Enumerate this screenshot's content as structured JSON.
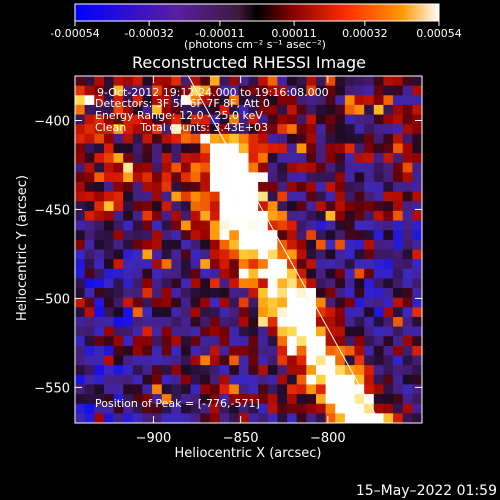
{
  "colorbar": {
    "tick_labels": [
      "-0.00054",
      "-0.00032",
      "-0.00011",
      "0.00011",
      "0.00032",
      "0.00054"
    ],
    "tick_values": [
      -0.00054,
      -0.00032,
      -0.00011,
      0.00011,
      0.00032,
      0.00054
    ],
    "unit_label": "(photons cm⁻² s⁻¹ asec⁻²)",
    "range": [
      -0.00054,
      0.00054
    ],
    "colormap": [
      "#0000ff",
      "#5a1ea0",
      "#3c1a3c",
      "#000000",
      "#8b0000",
      "#ff3000",
      "#ff9900",
      "#ffffff"
    ]
  },
  "chart_data": {
    "type": "heatmap",
    "title": "Reconstructed RHESSI Image",
    "xlabel": "Heliocentric X (arcsec)",
    "ylabel": "Heliocentric Y (arcsec)",
    "xlim": [
      -945,
      -746
    ],
    "ylim": [
      -570,
      -375
    ],
    "x_ticks": [
      -900,
      -850,
      -800
    ],
    "x_tick_labels": [
      "−900",
      "−850",
      "−800"
    ],
    "y_ticks": [
      -400,
      -450,
      -500,
      -550
    ],
    "y_tick_labels": [
      "−400",
      "−450",
      "−500",
      "−550"
    ],
    "annotations": [
      "9-Oct-2012 19:12:24.000 to 19:16:08.000",
      "Detectors: 3F 5F 6F 7F 8F, Att 0",
      "Energy Range: 12.0 - 25.0 keV",
      "Clean    Total counts: 3.43E+03"
    ],
    "peak_text": "Position of Peak = [-776,-571]",
    "peak_position": [
      -776,
      -571
    ],
    "limb_line": [
      [
        -880,
        -375
      ],
      [
        -770,
        -570
      ]
    ],
    "emission_ridge": [
      [
        -858,
        -425
      ],
      [
        -848,
        -455
      ],
      [
        -830,
        -480
      ],
      [
        -818,
        -510
      ],
      [
        -805,
        -535
      ],
      [
        -790,
        -555
      ],
      [
        -776,
        -571
      ]
    ]
  },
  "footer": {
    "timestamp": "15–May–2022 01:59"
  }
}
